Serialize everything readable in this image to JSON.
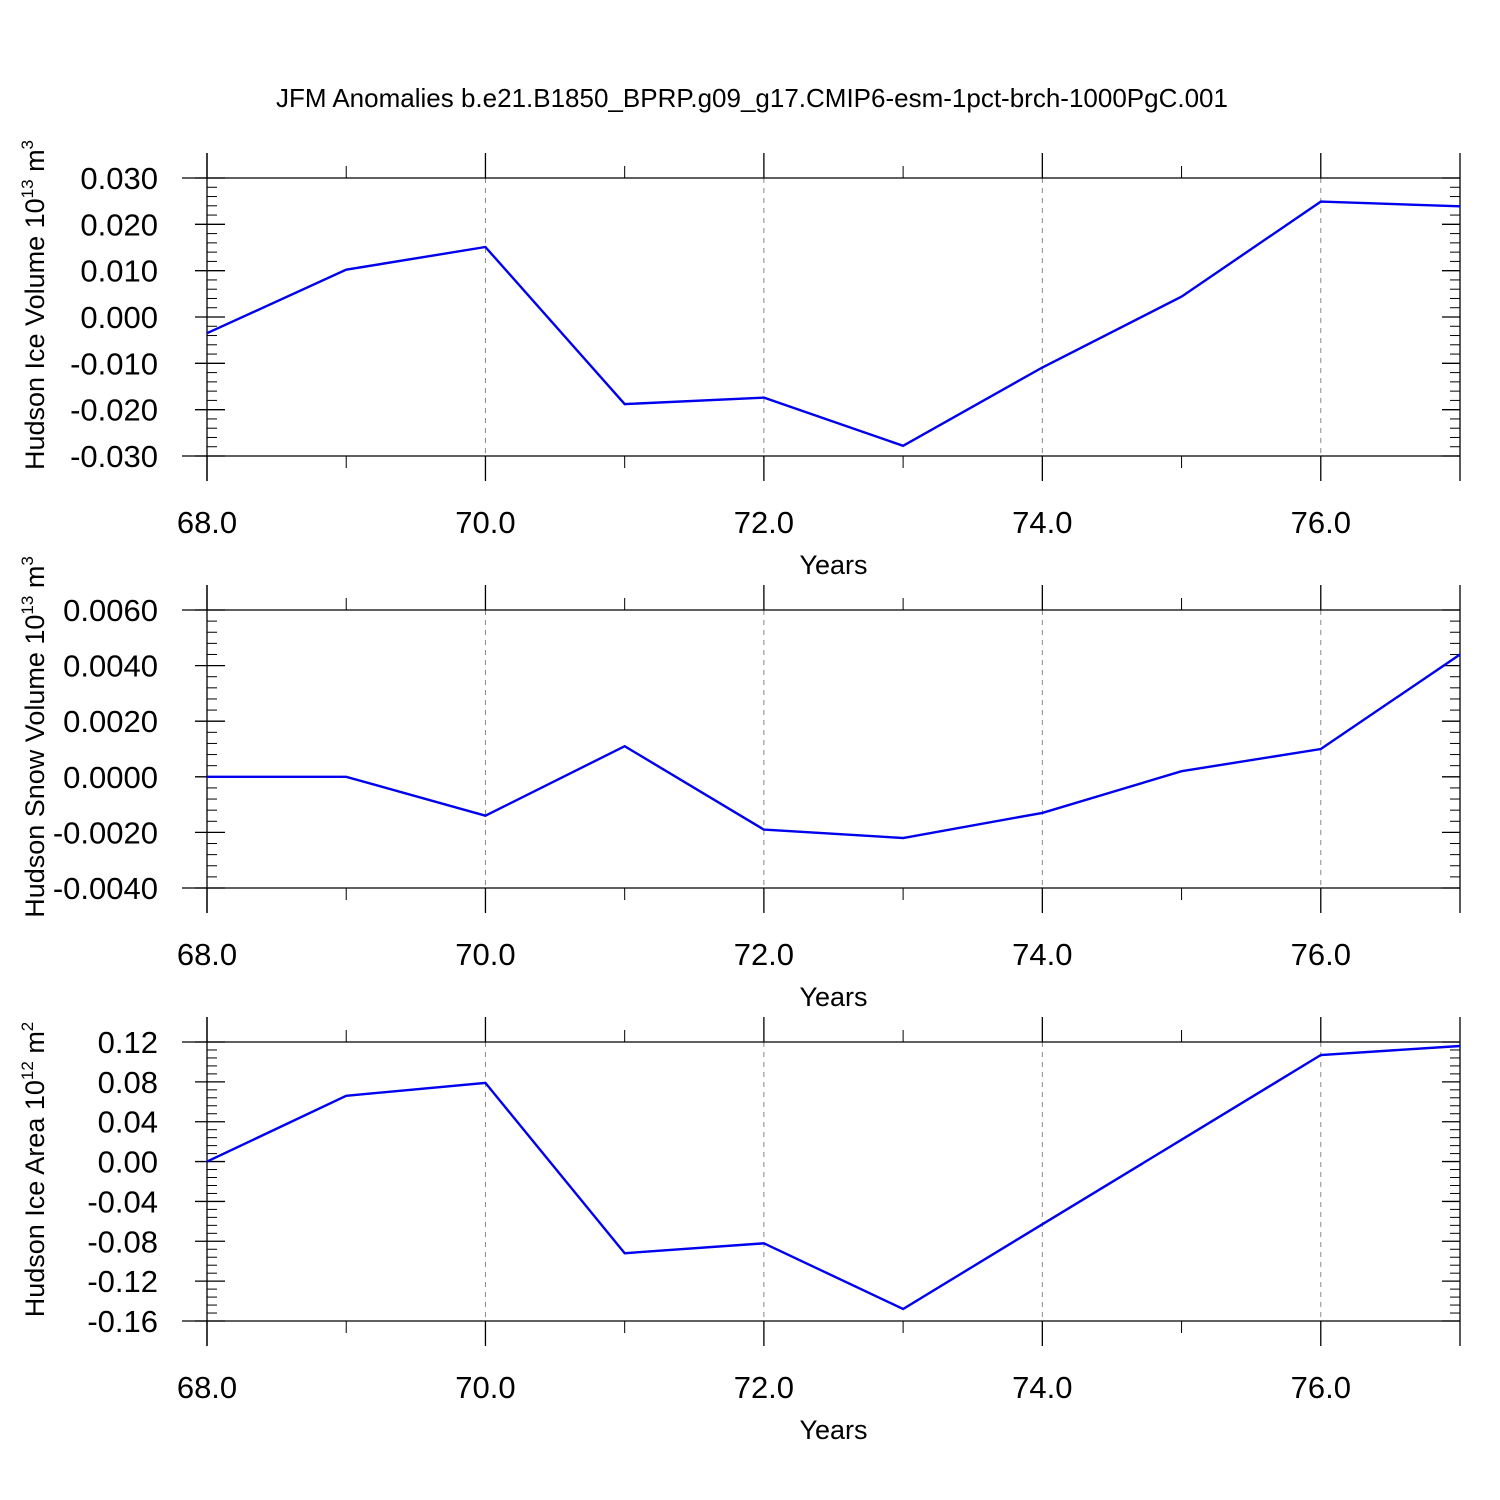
{
  "title": "JFM Anomalies b.e21.B1850_BPRP.g09_g17.CMIP6-esm-1pct-brch-1000PgC.001",
  "colors": {
    "line": "#0000ee",
    "axis": "#000000",
    "grid": "#888888"
  },
  "chart_data": [
    {
      "type": "line",
      "xlabel": "Years",
      "ylabel": "Hudson Ice Volume 10",
      "ylabel_exp": "13",
      "ylabel_unit": " m",
      "ylabel_unit_exp": "3",
      "xlim": [
        68,
        77
      ],
      "ylim": [
        -0.03,
        0.03
      ],
      "xticks": [
        68,
        70,
        72,
        74,
        76
      ],
      "xtick_labels": [
        "68.0",
        "70.0",
        "72.0",
        "74.0",
        "76.0"
      ],
      "yticks": [
        -0.03,
        -0.02,
        -0.01,
        0,
        0.01,
        0.02,
        0.03
      ],
      "ytick_labels": [
        "-0.030",
        "-0.020",
        "-0.010",
        "0.000",
        "0.010",
        "0.020",
        "0.030"
      ],
      "series": [
        {
          "x": [
            68,
            69,
            70,
            71,
            72,
            73,
            74,
            75,
            76,
            77
          ],
          "values": [
            -0.0035,
            0.0102,
            0.0151,
            -0.0188,
            -0.0174,
            -0.0278,
            -0.0109,
            0.0044,
            0.0249,
            0.0239
          ]
        }
      ]
    },
    {
      "type": "line",
      "xlabel": "Years",
      "ylabel": "Hudson Snow Volume 10",
      "ylabel_exp": "13",
      "ylabel_unit": " m",
      "ylabel_unit_exp": "3",
      "xlim": [
        68,
        77
      ],
      "ylim": [
        -0.004,
        0.006
      ],
      "xticks": [
        68,
        70,
        72,
        74,
        76
      ],
      "xtick_labels": [
        "68.0",
        "70.0",
        "72.0",
        "74.0",
        "76.0"
      ],
      "yticks": [
        -0.004,
        -0.002,
        0,
        0.002,
        0.004,
        0.006
      ],
      "ytick_labels": [
        "-0.0040",
        "-0.0020",
        "0.0000",
        "0.0020",
        "0.0040",
        "0.0060"
      ],
      "series": [
        {
          "x": [
            68,
            69,
            70,
            71,
            72,
            73,
            74,
            75,
            76,
            77
          ],
          "values": [
            0.0,
            0.0,
            -0.0014,
            0.0011,
            -0.0019,
            -0.0022,
            -0.0013,
            0.0002,
            0.001,
            0.0044
          ]
        }
      ]
    },
    {
      "type": "line",
      "xlabel": "Years",
      "ylabel": "Hudson Ice Area 10",
      "ylabel_exp": "12",
      "ylabel_unit": " m",
      "ylabel_unit_exp": "2",
      "xlim": [
        68,
        77
      ],
      "ylim": [
        -0.16,
        0.12
      ],
      "xticks": [
        68,
        70,
        72,
        74,
        76
      ],
      "xtick_labels": [
        "68.0",
        "70.0",
        "72.0",
        "74.0",
        "76.0"
      ],
      "yticks": [
        -0.16,
        -0.12,
        -0.08,
        -0.04,
        0,
        0.04,
        0.08,
        0.12
      ],
      "ytick_labels": [
        "-0.16",
        "-0.12",
        "-0.08",
        "-0.04",
        "0.00",
        "0.04",
        "0.08",
        "0.12"
      ],
      "series": [
        {
          "x": [
            68,
            69,
            70,
            71,
            72,
            73,
            74,
            75,
            76,
            77
          ],
          "values": [
            0.0,
            0.066,
            0.079,
            -0.092,
            -0.082,
            -0.148,
            -0.063,
            0.022,
            0.107,
            0.116
          ]
        }
      ]
    }
  ]
}
